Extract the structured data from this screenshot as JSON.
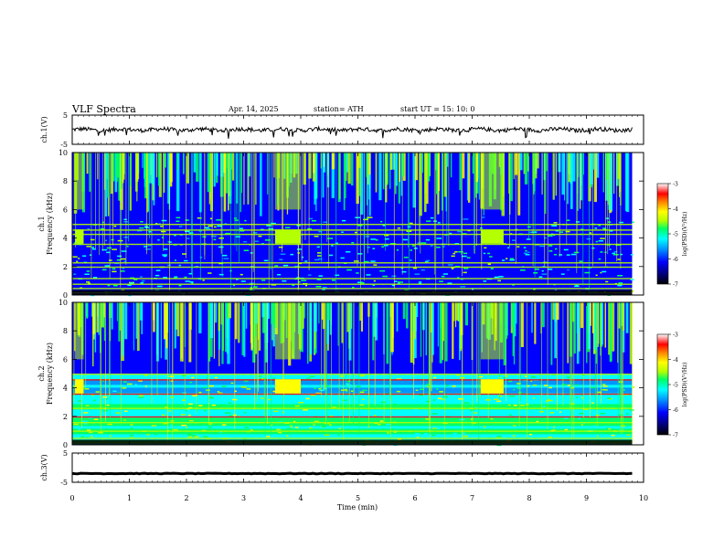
{
  "header": {
    "title": "VLF  Spectra",
    "date": "Apr. 14, 2025",
    "station": "station= ATH",
    "start": "start  UT  =   15: 10: 0"
  },
  "chart_data": [
    {
      "type": "line",
      "title": "",
      "ylabel": "ch.1(V)",
      "yticks": [
        "5",
        "-5"
      ],
      "ylim": [
        -5,
        5
      ],
      "xlim": [
        0,
        10
      ],
      "data_xlim": [
        0,
        9.8
      ],
      "note_level": 0,
      "series": [
        {
          "description": "noisy trace centered near 0 V, amplitude ~±1 V with occasional negative spikes to about -2 V"
        }
      ]
    },
    {
      "type": "heatmap",
      "ylabel_top": "ch.1",
      "ylabel": "Frequency  (kHz)",
      "yticks": [
        "0",
        "2",
        "4",
        "6",
        "8",
        "10"
      ],
      "ylim": [
        0,
        10
      ],
      "xlim": [
        0,
        10
      ],
      "data_xlim": [
        0,
        9.8
      ],
      "features": {
        "high_intensity_bursts_min": [
          [
            0.05,
            0.2
          ],
          [
            3.55,
            4.0
          ],
          [
            7.15,
            7.55
          ]
        ],
        "burst_band_khz": [
          3.6,
          4.6
        ],
        "persistent_lines_khz": [
          0.2,
          0.5,
          0.8,
          1.2,
          2.0,
          2.3,
          3.6,
          4.3,
          4.6,
          5.0
        ],
        "colorbar": {
          "label": "log(PSD)(V²/Hz)",
          "ticks": [
            "-3",
            "-4",
            "-5",
            "-6",
            "-7"
          ],
          "range": [
            -7,
            -3
          ]
        }
      }
    },
    {
      "type": "heatmap",
      "ylabel_top": "ch.2",
      "ylabel": "Frequency  (kHz)",
      "yticks": [
        "0",
        "2",
        "4",
        "6",
        "8",
        "10"
      ],
      "ylim": [
        0,
        10
      ],
      "xlim": [
        0,
        10
      ],
      "data_xlim": [
        0,
        9.8
      ],
      "features": {
        "high_intensity_bursts_min": [
          [
            0.05,
            0.2
          ],
          [
            3.55,
            4.0
          ],
          [
            7.15,
            7.55
          ]
        ],
        "burst_band_khz": [
          3.6,
          4.6
        ],
        "persistent_lines_khz": [
          0.2,
          0.5,
          1.0,
          1.6,
          2.0,
          2.6,
          3.6,
          4.6,
          5.0
        ],
        "colorbar": {
          "label": "log(PSD)(V²/Hz)",
          "ticks": [
            "-3",
            "-4",
            "-5",
            "-6",
            "-7"
          ],
          "range": [
            -7,
            -3
          ]
        }
      }
    },
    {
      "type": "line",
      "title": "",
      "ylabel": "ch.3(V)",
      "yticks": [
        "5",
        "-5"
      ],
      "ylim": [
        -5,
        5
      ],
      "xlim": [
        0,
        10
      ],
      "data_xlim": [
        0,
        9.8
      ],
      "series": [
        {
          "description": "thick flat trace near -2 V",
          "level": -2
        }
      ]
    }
  ],
  "xaxis": {
    "label": "Time  (min)",
    "ticks": [
      "0",
      "1",
      "2",
      "3",
      "4",
      "5",
      "6",
      "7",
      "8",
      "9",
      "10"
    ],
    "range": [
      0,
      10
    ]
  },
  "colors": {
    "frame": "#000000",
    "trace": "#000000",
    "colormap": [
      "#00007a",
      "#0000ff",
      "#0096ff",
      "#00ffff",
      "#00ff64",
      "#b4ff00",
      "#ffff00",
      "#ff8000",
      "#ff0000",
      "#ffffff"
    ]
  }
}
